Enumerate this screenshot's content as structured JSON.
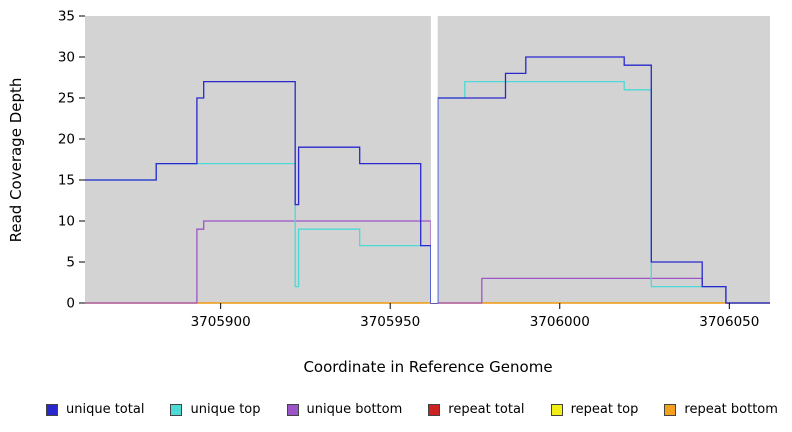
{
  "figure": {
    "x_axis_label": "Coordinate in Reference Genome",
    "y_axis_label": "Read Coverage Depth"
  },
  "colors": {
    "plot_background": "#d3d3d3",
    "gap_band": "#ffffff",
    "axis_text": "#000000"
  },
  "legend": [
    {
      "label": "unique total",
      "color": "#2828cd"
    },
    {
      "label": "unique top",
      "color": "#4dd9d5"
    },
    {
      "label": "unique bottom",
      "color": "#9c55c8"
    },
    {
      "label": "repeat total",
      "color": "#cc2222"
    },
    {
      "label": "repeat top",
      "color": "#f3ef16"
    },
    {
      "label": "repeat bottom",
      "color": "#f59f1e"
    }
  ],
  "chart_data": {
    "type": "line",
    "style": "step",
    "title": "",
    "xlabel": "Coordinate in Reference Genome",
    "ylabel": "Read Coverage Depth",
    "xlim": [
      3705860,
      3706062
    ],
    "ylim": [
      0,
      35
    ],
    "x_ticks": [
      3705900,
      3705950,
      3706000,
      3706050
    ],
    "y_ticks": [
      0,
      5,
      10,
      15,
      20,
      25,
      30,
      35
    ],
    "grid": false,
    "legend_position": "bottom",
    "gap_region": {
      "x_start": 3705962,
      "x_end": 3705964
    },
    "series": [
      {
        "name": "repeat total",
        "color": "#cc2222",
        "points": [
          [
            3705860,
            0
          ]
        ]
      },
      {
        "name": "repeat top",
        "color": "#f3ef16",
        "points": [
          [
            3705860,
            0
          ]
        ]
      },
      {
        "name": "repeat bottom",
        "color": "#f59f1e",
        "points": [
          [
            3705860,
            0
          ]
        ]
      },
      {
        "name": "unique bottom",
        "color": "#9c55c8",
        "points": [
          [
            3705860,
            0
          ],
          [
            3705893,
            9
          ],
          [
            3705895,
            10
          ],
          [
            3705962,
            0
          ],
          [
            3705977,
            3
          ],
          [
            3706042,
            2
          ],
          [
            3706049,
            0
          ]
        ]
      },
      {
        "name": "unique top",
        "color": "#4dd9d5",
        "points": [
          [
            3705860,
            15
          ],
          [
            3705881,
            17
          ],
          [
            3705922,
            2
          ],
          [
            3705923,
            9
          ],
          [
            3705941,
            7
          ],
          [
            3705962,
            0
          ],
          [
            3705964,
            25
          ],
          [
            3705972,
            27
          ],
          [
            3706019,
            26
          ],
          [
            3706027,
            2
          ],
          [
            3706049,
            0
          ]
        ]
      },
      {
        "name": "unique total",
        "color": "#2828cd",
        "points": [
          [
            3705860,
            15
          ],
          [
            3705881,
            17
          ],
          [
            3705893,
            25
          ],
          [
            3705895,
            27
          ],
          [
            3705922,
            12
          ],
          [
            3705923,
            19
          ],
          [
            3705941,
            17
          ],
          [
            3705959,
            7
          ],
          [
            3705962,
            0
          ],
          [
            3705964,
            25
          ],
          [
            3705984,
            28
          ],
          [
            3705990,
            30
          ],
          [
            3706019,
            29
          ],
          [
            3706027,
            5
          ],
          [
            3706042,
            2
          ],
          [
            3706049,
            0
          ]
        ]
      }
    ]
  }
}
